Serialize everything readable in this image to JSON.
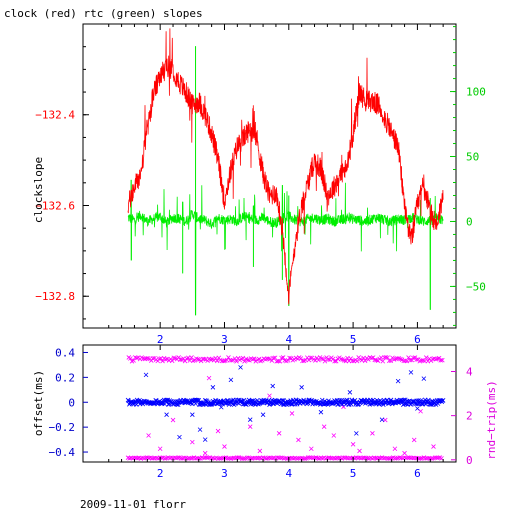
{
  "title": "clock (red) rtc (green) slopes",
  "footer": "2009-11-01 florr",
  "colors": {
    "clock": "#ff0000",
    "rtc": "#00ee00",
    "offset": "#0000ff",
    "rtt": "#ff00ff",
    "axis": "#000000",
    "upper_right_axis": "#00cc00",
    "lower_right_axis": "#dd00dd",
    "lower_left_axis": "#0000cc",
    "upper_left_ticks": "#ff0000"
  },
  "chart_data": [
    {
      "type": "line",
      "title": "clock (red) rtc (green) slopes",
      "xlim": [
        0.8,
        6.6
      ],
      "x_ticks": [
        2,
        3,
        4,
        5,
        6
      ],
      "left_axis": {
        "label": "clockslope",
        "ylim": [
          -132.87,
          -132.2
        ],
        "ticks": [
          -132.4,
          -132.6,
          -132.8
        ],
        "tick_labels": [
          "−132.4",
          "−132.6",
          "−132.8"
        ]
      },
      "right_axis": {
        "label": "",
        "ylim": [
          -82,
          152
        ],
        "ticks": [
          100,
          50,
          0,
          -50
        ],
        "tick_labels": [
          "100",
          "50",
          "0",
          "−50"
        ]
      },
      "series": [
        {
          "color": "red",
          "axis": "left",
          "x": [
            1.5,
            1.6,
            1.7,
            1.8,
            1.9,
            2.0,
            2.1,
            2.2,
            2.3,
            2.4,
            2.5,
            2.6,
            2.7,
            2.8,
            2.9,
            3.0,
            3.1,
            3.2,
            3.3,
            3.4,
            3.5,
            3.6,
            3.7,
            3.8,
            3.9,
            4.0,
            4.1,
            4.2,
            4.3,
            4.4,
            4.5,
            4.6,
            4.7,
            4.8,
            4.9,
            5.0,
            5.1,
            5.2,
            5.3,
            5.4,
            5.5,
            5.6,
            5.7,
            5.8,
            5.9,
            6.0,
            6.1,
            6.2,
            6.3,
            6.4
          ],
          "y": [
            -132.6,
            -132.56,
            -132.53,
            -132.43,
            -132.35,
            -132.32,
            -132.29,
            -132.3,
            -132.33,
            -132.35,
            -132.38,
            -132.37,
            -132.4,
            -132.44,
            -132.5,
            -132.59,
            -132.52,
            -132.47,
            -132.45,
            -132.43,
            -132.45,
            -132.53,
            -132.58,
            -132.57,
            -132.65,
            -132.8,
            -132.68,
            -132.6,
            -132.55,
            -132.5,
            -132.52,
            -132.58,
            -132.56,
            -132.53,
            -132.52,
            -132.44,
            -132.35,
            -132.37,
            -132.37,
            -132.38,
            -132.41,
            -132.44,
            -132.47,
            -132.6,
            -132.68,
            -132.6,
            -132.55,
            -132.62,
            -132.64,
            -132.58
          ]
        },
        {
          "color": "green",
          "axis": "right",
          "x": [
            1.5,
            1.6,
            1.7,
            1.8,
            1.9,
            2.0,
            2.1,
            2.2,
            2.3,
            2.4,
            2.5,
            2.6,
            2.7,
            2.8,
            2.9,
            3.0,
            3.1,
            3.2,
            3.3,
            3.4,
            3.5,
            3.6,
            3.7,
            3.8,
            3.9,
            4.0,
            4.1,
            4.2,
            4.3,
            4.4,
            4.5,
            4.6,
            4.7,
            4.8,
            4.9,
            5.0,
            5.1,
            5.2,
            5.3,
            5.4,
            5.5,
            5.6,
            5.7,
            5.8,
            5.9,
            6.0,
            6.1,
            6.2,
            6.3,
            6.4
          ],
          "y": [
            3,
            1,
            5,
            0,
            2,
            4,
            -1,
            3,
            2,
            0,
            6,
            2,
            1,
            -2,
            3,
            1,
            2,
            0,
            4,
            2,
            1,
            3,
            0,
            -1,
            2,
            4,
            1,
            0,
            2,
            3,
            1,
            2,
            0,
            1,
            3,
            2,
            1,
            0,
            2,
            3,
            1,
            0,
            2,
            1,
            3,
            2,
            0,
            1,
            2,
            1
          ],
          "notable_spikes": [
            {
              "x": 2.55,
              "min": -72,
              "max": 135
            },
            {
              "x": 2.35,
              "min": -40,
              "max": 15
            },
            {
              "x": 3.45,
              "min": -35,
              "max": 12
            },
            {
              "x": 3.9,
              "min": -45,
              "max": 28
            },
            {
              "x": 4.0,
              "min": -65,
              "max": 20
            },
            {
              "x": 6.2,
              "min": -68,
              "max": 18
            },
            {
              "x": 1.55,
              "min": -30,
              "max": 32
            }
          ]
        }
      ]
    },
    {
      "type": "scatter",
      "xlim": [
        0.8,
        6.6
      ],
      "x_ticks": [
        2,
        3,
        4,
        5,
        6
      ],
      "left_axis": {
        "label": "offset(ms)",
        "ylim": [
          -0.48,
          0.46
        ],
        "ticks": [
          0.4,
          0.2,
          0,
          -0.2,
          -0.4
        ],
        "tick_labels": [
          "0.4",
          "0.2",
          "0",
          "−0.2",
          "−0.4"
        ]
      },
      "right_axis": {
        "label": "rnd−trip(ms)",
        "ylim": [
          -0.1,
          5.2
        ],
        "ticks": [
          4,
          2,
          0
        ],
        "tick_labels": [
          "4",
          "2",
          "0"
        ]
      },
      "series": [
        {
          "color": "blue",
          "axis": "left",
          "marker": "x",
          "x_range": [
            1.5,
            6.4
          ],
          "typical_y": 0.0,
          "band": [
            -0.02,
            0.02
          ],
          "outliers": [
            {
              "x": 1.78,
              "y": 0.22
            },
            {
              "x": 2.1,
              "y": -0.1
            },
            {
              "x": 2.3,
              "y": -0.28
            },
            {
              "x": 2.5,
              "y": -0.1
            },
            {
              "x": 2.62,
              "y": -0.22
            },
            {
              "x": 2.7,
              "y": -0.3
            },
            {
              "x": 2.82,
              "y": 0.12
            },
            {
              "x": 2.95,
              "y": -0.04
            },
            {
              "x": 3.1,
              "y": 0.18
            },
            {
              "x": 3.25,
              "y": 0.28
            },
            {
              "x": 3.4,
              "y": -0.14
            },
            {
              "x": 3.6,
              "y": -0.1
            },
            {
              "x": 3.75,
              "y": 0.13
            },
            {
              "x": 4.2,
              "y": 0.12
            },
            {
              "x": 4.5,
              "y": -0.08
            },
            {
              "x": 4.95,
              "y": 0.08
            },
            {
              "x": 5.05,
              "y": -0.25
            },
            {
              "x": 5.45,
              "y": -0.14
            },
            {
              "x": 5.7,
              "y": 0.17
            },
            {
              "x": 5.9,
              "y": 0.24
            },
            {
              "x": 6.0,
              "y": -0.05
            },
            {
              "x": 6.1,
              "y": 0.19
            }
          ]
        },
        {
          "color": "magenta",
          "axis": "right",
          "marker": "x",
          "x_range": [
            1.5,
            6.4
          ],
          "typical_y": 0.08,
          "upper_band_y": 4.55,
          "scattered": [
            {
              "x": 1.82,
              "y": 1.1
            },
            {
              "x": 2.0,
              "y": 0.5
            },
            {
              "x": 2.2,
              "y": 1.8
            },
            {
              "x": 2.5,
              "y": 0.8
            },
            {
              "x": 2.7,
              "y": 0.3
            },
            {
              "x": 2.76,
              "y": 3.7
            },
            {
              "x": 2.9,
              "y": 1.3
            },
            {
              "x": 3.0,
              "y": 0.6
            },
            {
              "x": 3.2,
              "y": 2.6
            },
            {
              "x": 3.4,
              "y": 1.5
            },
            {
              "x": 3.55,
              "y": 0.4
            },
            {
              "x": 3.7,
              "y": 2.9
            },
            {
              "x": 3.85,
              "y": 1.2
            },
            {
              "x": 4.05,
              "y": 2.1
            },
            {
              "x": 4.15,
              "y": 0.9
            },
            {
              "x": 4.35,
              "y": 0.5
            },
            {
              "x": 4.55,
              "y": 1.5
            },
            {
              "x": 4.7,
              "y": 1.1
            },
            {
              "x": 4.85,
              "y": 2.4
            },
            {
              "x": 5.0,
              "y": 0.7
            },
            {
              "x": 5.1,
              "y": 0.4
            },
            {
              "x": 5.3,
              "y": 1.2
            },
            {
              "x": 5.5,
              "y": 1.8
            },
            {
              "x": 5.65,
              "y": 0.5
            },
            {
              "x": 5.8,
              "y": 0.3
            },
            {
              "x": 5.95,
              "y": 0.9
            },
            {
              "x": 6.05,
              "y": 2.2
            },
            {
              "x": 6.25,
              "y": 0.6
            }
          ]
        }
      ]
    }
  ]
}
